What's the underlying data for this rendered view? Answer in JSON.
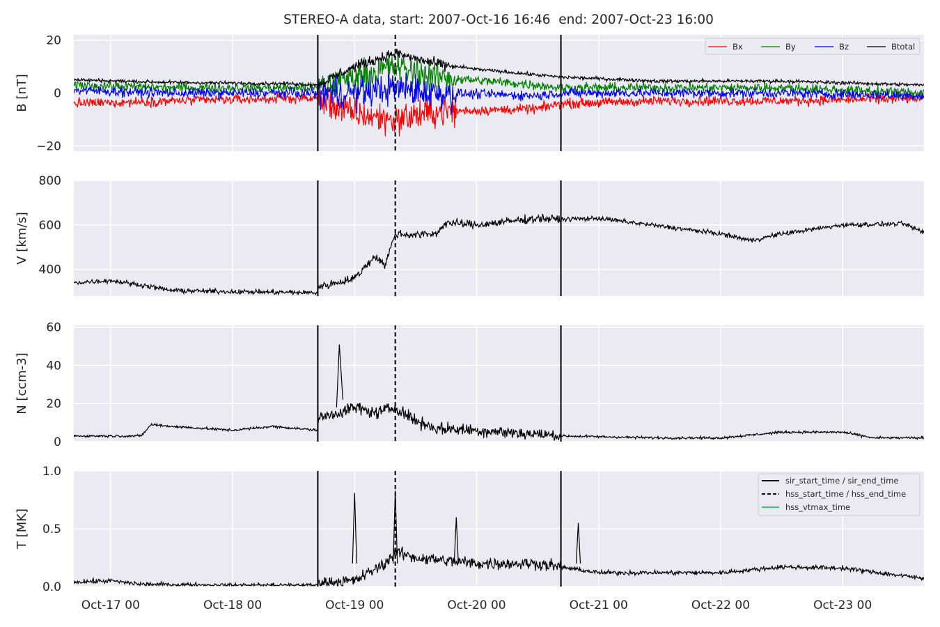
{
  "title": "STEREO-A data, start: 2007-Oct-16 16:46  end: 2007-Oct-23 16:00",
  "chart_data": {
    "type": "line",
    "x_start": "2007-10-16 16:46",
    "x_end": "2007-10-23 16:00",
    "x_ticks": [
      "Oct-17 00",
      "Oct-18 00",
      "Oct-19 00",
      "Oct-20 00",
      "Oct-21 00",
      "Oct-22 00",
      "Oct-23 00"
    ],
    "grid": true,
    "event_lines": [
      {
        "kind": "sir_start_time / sir_end_time",
        "style": "solid",
        "times": [
          "2007-10-18 16:46",
          "2007-10-20 16:35"
        ]
      },
      {
        "kind": "hss_start_time / hss_end_time",
        "style": "dashed",
        "times": [
          "2007-10-19 08:00"
        ]
      }
    ],
    "panels": [
      {
        "ylabel": "B [nT]",
        "ylim": [
          -22,
          22
        ],
        "yticks": [
          "−20",
          "0",
          "20"
        ],
        "legend_position": "top-right",
        "series": [
          {
            "name": "Bx",
            "color": "#ff0000",
            "points": [
              [
                "10-16 16:46",
                -4
              ],
              [
                "10-17 12:00",
                -3
              ],
              [
                "10-18 12:00",
                -2
              ],
              [
                "10-18 16:40",
                -2
              ],
              [
                "10-19 00:00",
                -8
              ],
              [
                "10-19 08:00",
                -10
              ],
              [
                "10-19 16:00",
                -7
              ],
              [
                "10-20 12:00",
                -6
              ],
              [
                "10-20 16:35",
                -4
              ],
              [
                "10-21 12:00",
                -3
              ],
              [
                "10-22 12:00",
                -3
              ],
              [
                "10-23 16:00",
                -2
              ]
            ]
          },
          {
            "name": "By",
            "color": "#008000",
            "points": [
              [
                "10-16 16:46",
                3
              ],
              [
                "10-17 12:00",
                2
              ],
              [
                "10-18 12:00",
                2
              ],
              [
                "10-18 16:40",
                2
              ],
              [
                "10-19 00:00",
                6
              ],
              [
                "10-19 08:00",
                10
              ],
              [
                "10-19 16:00",
                6
              ],
              [
                "10-20 12:00",
                3
              ],
              [
                "10-20 16:35",
                2
              ],
              [
                "10-21 12:00",
                2
              ],
              [
                "10-22 12:00",
                2
              ],
              [
                "10-23 16:00",
                0
              ]
            ]
          },
          {
            "name": "Bz",
            "color": "#0000ff",
            "points": [
              [
                "10-16 16:46",
                1
              ],
              [
                "10-17 12:00",
                0
              ],
              [
                "10-18 12:00",
                0
              ],
              [
                "10-18 16:40",
                0
              ],
              [
                "10-19 00:00",
                0
              ],
              [
                "10-19 08:00",
                2
              ],
              [
                "10-19 16:00",
                0
              ],
              [
                "10-20 12:00",
                -1
              ],
              [
                "10-20 16:35",
                0
              ],
              [
                "10-21 12:00",
                0
              ],
              [
                "10-22 12:00",
                0
              ],
              [
                "10-23 16:00",
                -1
              ]
            ]
          },
          {
            "name": "Btotal",
            "color": "#000000",
            "points": [
              [
                "10-16 16:46",
                5
              ],
              [
                "10-17 12:00",
                4
              ],
              [
                "10-18 12:00",
                3.5
              ],
              [
                "10-18 16:40",
                3
              ],
              [
                "10-19 00:00",
                10
              ],
              [
                "10-19 08:00",
                15
              ],
              [
                "10-19 16:00",
                11
              ],
              [
                "10-20 00:00",
                9
              ],
              [
                "10-20 16:35",
                6
              ],
              [
                "10-21 12:00",
                4.5
              ],
              [
                "10-22 12:00",
                4.5
              ],
              [
                "10-23 16:00",
                3
              ]
            ]
          }
        ]
      },
      {
        "ylabel": "V [km/s]",
        "ylim": [
          280,
          800
        ],
        "yticks": [
          "400",
          "600",
          "800"
        ],
        "series": [
          {
            "name": "",
            "color": "#000000",
            "points": [
              [
                "10-16 16:46",
                340
              ],
              [
                "10-17 00:00",
                350
              ],
              [
                "10-17 06:00",
                330
              ],
              [
                "10-17 12:00",
                305
              ],
              [
                "10-18 00:00",
                300
              ],
              [
                "10-18 16:40",
                295
              ],
              [
                "10-18 16:50",
                320
              ],
              [
                "10-19 00:00",
                360
              ],
              [
                "10-19 04:00",
                460
              ],
              [
                "10-19 06:00",
                420
              ],
              [
                "10-19 08:00",
                560
              ],
              [
                "10-19 12:00",
                555
              ],
              [
                "10-19 16:00",
                560
              ],
              [
                "10-19 18:00",
                610
              ],
              [
                "10-20 00:00",
                600
              ],
              [
                "10-20 12:00",
                630
              ],
              [
                "10-20 16:35",
                625
              ],
              [
                "10-21 00:00",
                630
              ],
              [
                "10-21 12:00",
                595
              ],
              [
                "10-22 00:00",
                560
              ],
              [
                "10-22 06:00",
                530
              ],
              [
                "10-22 12:00",
                560
              ],
              [
                "10-23 00:00",
                600
              ],
              [
                "10-23 12:00",
                605
              ],
              [
                "10-23 16:00",
                565
              ]
            ]
          }
        ]
      },
      {
        "ylabel": "N [ccm-3]",
        "ylim": [
          0,
          61
        ],
        "yticks": [
          "0",
          "20",
          "40",
          "60"
        ],
        "series": [
          {
            "name": "",
            "color": "#000000",
            "points": [
              [
                "10-16 16:46",
                3
              ],
              [
                "10-17 06:00",
                3
              ],
              [
                "10-17 08:00",
                9
              ],
              [
                "10-17 12:00",
                8
              ],
              [
                "10-18 00:00",
                6
              ],
              [
                "10-18 08:00",
                8
              ],
              [
                "10-18 16:40",
                6
              ],
              [
                "10-18 16:50",
                12
              ],
              [
                "10-19 00:00",
                18
              ],
              [
                "10-19 04:00",
                15
              ],
              [
                "10-19 08:00",
                18
              ],
              [
                "10-19 12:00",
                11
              ],
              [
                "10-19 16:00",
                7
              ],
              [
                "10-20 00:00",
                6
              ],
              [
                "10-20 16:35",
                3
              ],
              [
                "10-21 12:00",
                2
              ],
              [
                "10-22 00:00",
                2
              ],
              [
                "10-22 12:00",
                5
              ],
              [
                "10-23 00:00",
                5
              ],
              [
                "10-23 06:00",
                2
              ],
              [
                "10-23 16:00",
                2
              ]
            ]
          }
        ]
      },
      {
        "ylabel": "T [MK]",
        "ylim": [
          0,
          1.0
        ],
        "yticks": [
          "0.0",
          "0.5",
          "1.0"
        ],
        "legend_position": "top-right",
        "series": [
          {
            "name": "",
            "color": "#000000",
            "points": [
              [
                "10-16 16:46",
                0.04
              ],
              [
                "10-17 00:00",
                0.05
              ],
              [
                "10-17 06:00",
                0.02
              ],
              [
                "10-18 00:00",
                0.01
              ],
              [
                "10-18 16:40",
                0.01
              ],
              [
                "10-18 16:50",
                0.03
              ],
              [
                "10-19 00:00",
                0.05
              ],
              [
                "10-19 06:00",
                0.2
              ],
              [
                "10-19 08:00",
                0.3
              ],
              [
                "10-19 12:00",
                0.25
              ],
              [
                "10-20 00:00",
                0.2
              ],
              [
                "10-20 12:00",
                0.2
              ],
              [
                "10-21 00:00",
                0.12
              ],
              [
                "10-22 00:00",
                0.12
              ],
              [
                "10-22 12:00",
                0.17
              ],
              [
                "10-23 00:00",
                0.16
              ],
              [
                "10-23 16:00",
                0.07
              ]
            ]
          }
        ],
        "peaks": [
          [
            "10-19 00:00",
            0.81
          ],
          [
            "10-19 08:00",
            0.83
          ],
          [
            "10-19 20:00",
            0.6
          ],
          [
            "10-20 20:00",
            0.55
          ]
        ]
      }
    ],
    "legend_entries": [
      {
        "label": "sir_start_time / sir_end_time",
        "color": "#000000",
        "style": "solid"
      },
      {
        "label": "hss_start_time / hss_end_time",
        "color": "#000000",
        "style": "dashed"
      },
      {
        "label": "hss_vtmax_time",
        "color": "#2ecc71",
        "style": "solid"
      }
    ]
  }
}
